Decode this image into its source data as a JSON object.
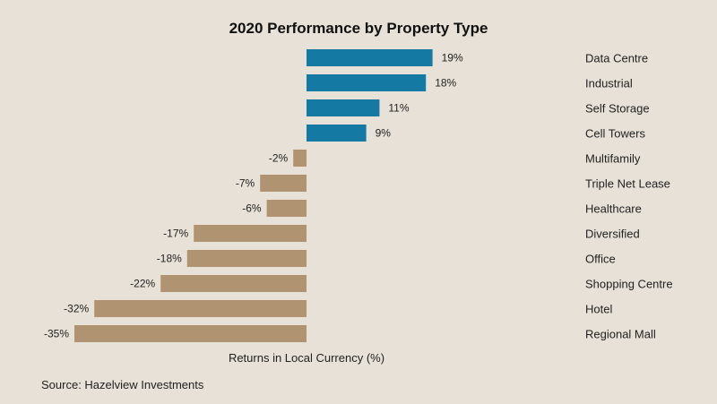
{
  "chart_data": {
    "type": "bar",
    "orientation": "horizontal",
    "title": "2020 Performance by Property Type",
    "xlabel": "Returns in Local Currency (%)",
    "ylabel": "",
    "categories": [
      "Data Centre",
      "Industrial",
      "Self Storage",
      "Cell Towers",
      "Multifamily",
      "Triple Net Lease",
      "Healthcare",
      "Diversified",
      "Office",
      "Shopping Centre",
      "Hotel",
      "Regional Mall"
    ],
    "values": [
      19,
      18,
      11,
      9,
      -2,
      -7,
      -6,
      -17,
      -18,
      -22,
      -32,
      -35
    ],
    "value_labels": [
      "19%",
      "18%",
      "11%",
      "9%",
      "-2%",
      "-7%",
      "-6%",
      "-17%",
      "-18%",
      "-22%",
      "-32%",
      "-35%"
    ],
    "xlim": [
      -35,
      19
    ],
    "grid": false,
    "legend": "none",
    "colors": {
      "positive": "#1479a3",
      "negative": "#b09472",
      "background": "#e7e1d7"
    }
  },
  "source": "Source: Hazelview Investments"
}
